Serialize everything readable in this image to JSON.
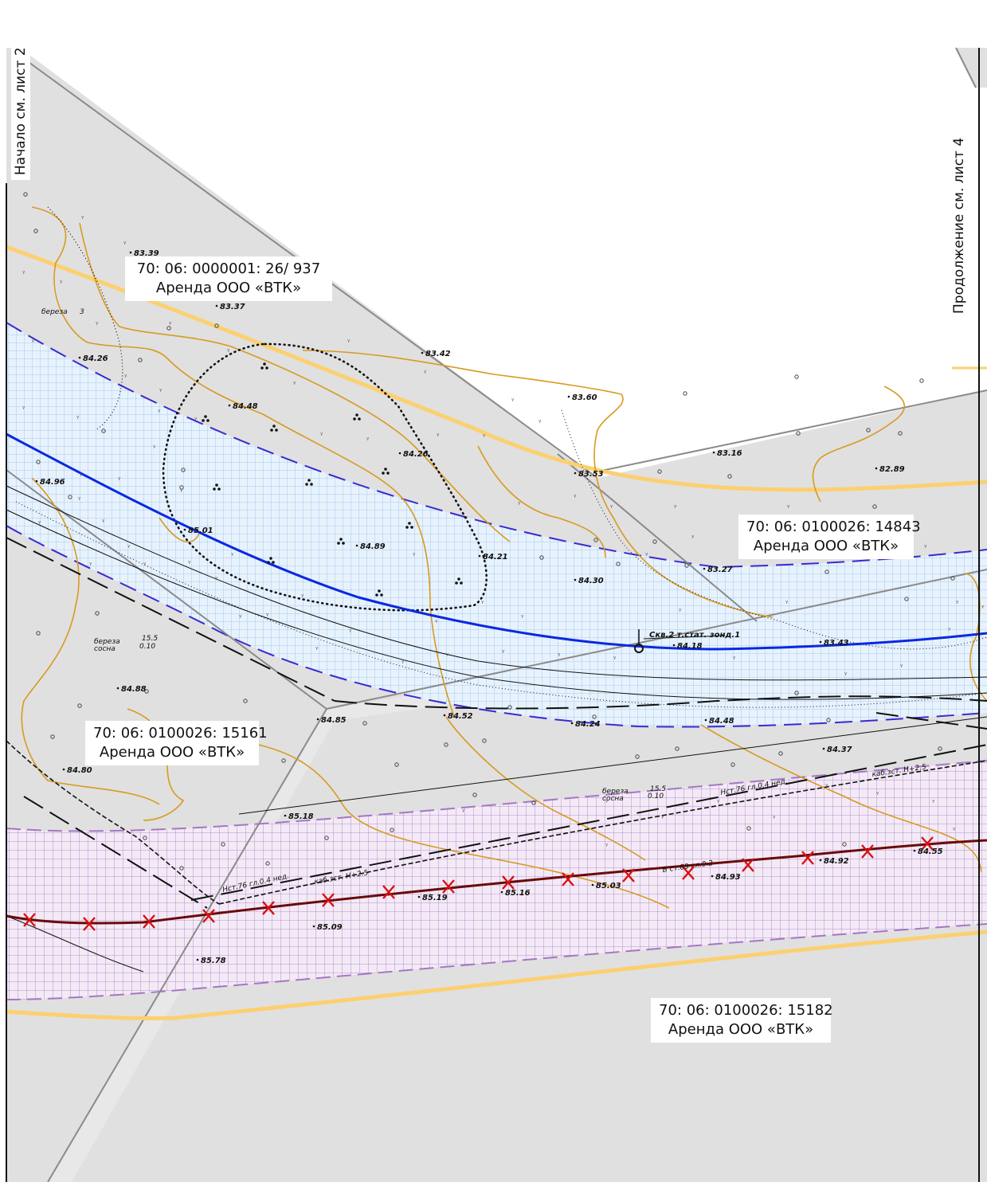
{
  "sheet_notes": {
    "left": "Начало  см.  лист 2",
    "right": "Продолжение    см.  лист 4"
  },
  "parcels": [
    {
      "number": "70: 06: 0000001: 26/ 937",
      "owner": "Аренда ООО «ВТК»"
    },
    {
      "number": "70: 06: 0100026: 14843",
      "owner": "Аренда ООО «ВТК»"
    },
    {
      "number": "70: 06: 0100026: 15161",
      "owner": "Аренда ООО «ВТК»"
    },
    {
      "number": "70: 06: 0100026: 15182",
      "owner": "Аренда ООО «ВТК»"
    }
  ],
  "elevations": [
    "83.39",
    "83.37",
    "84.26",
    "83.42",
    "84.48",
    "83.60",
    "84.26",
    "83.16",
    "82.89",
    "83.53",
    "84.96",
    "85.01",
    "84.89",
    "84.21",
    "84.30",
    "83.27",
    "83.43",
    "84.18",
    "84.88",
    "84.85",
    "84.52",
    "84.24",
    "84.48",
    "84.37",
    "84.80",
    "85.18",
    "85.19",
    "85.16",
    "85.03",
    "84.93",
    "84.92",
    "84.55",
    "85.09",
    "85.78"
  ],
  "annotations": {
    "well": "Скв.2 т.стат. зонд.1",
    "tree1": "береза",
    "tree1_size": "3",
    "tree2_a": "береза",
    "tree2_b": "сосна",
    "tree2_size": "15.5",
    "tree2_sub": "0.10",
    "tree3_a": "береза",
    "tree3_b": "сосна",
    "tree3_size": "15.5",
    "tree3_sub": "0.10",
    "line_a": "Нст.76 гл.0.4 нед.",
    "line_b": "каб.зст. Н+2.5",
    "line_c": "Нст.76 гл.0.4 нед.",
    "line_d": "каб.зст. Н+2.5",
    "line_e": "В ст.89 гл.0.2"
  },
  "colors": {
    "land": "#e0e0e0",
    "water_hatch": "#9cc8f0",
    "road_hatch": "#a070c0",
    "contour": "#e0a020",
    "axis": "#0a28e0",
    "pipe": "#fcd070"
  }
}
